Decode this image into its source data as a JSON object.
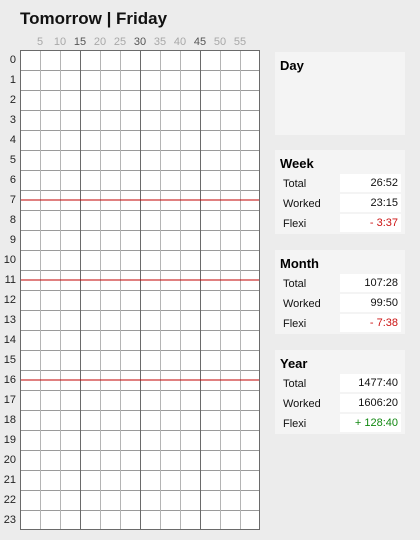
{
  "header": {
    "title": "Tomorrow | Friday"
  },
  "timeline": {
    "minute_labels": [
      "5",
      "10",
      "15",
      "20",
      "25",
      "30",
      "35",
      "40",
      "45",
      "50",
      "55"
    ],
    "hour_labels": [
      "0",
      "1",
      "2",
      "3",
      "4",
      "5",
      "6",
      "7",
      "8",
      "9",
      "10",
      "11",
      "12",
      "13",
      "14",
      "15",
      "16",
      "17",
      "18",
      "19",
      "20",
      "21",
      "22",
      "23"
    ],
    "marker_hours": [
      7.5,
      11.5,
      16.5
    ],
    "marker_color": "#c00000"
  },
  "panels": {
    "day": {
      "title": "Day"
    },
    "week": {
      "title": "Week",
      "rows": [
        {
          "label": "Total",
          "value": "26:52"
        },
        {
          "label": "Worked",
          "value": "23:15"
        },
        {
          "label": "Flexi",
          "value": "- 3:37"
        }
      ]
    },
    "month": {
      "title": "Month",
      "rows": [
        {
          "label": "Total",
          "value": "107:28"
        },
        {
          "label": "Worked",
          "value": "99:50"
        },
        {
          "label": "Flexi",
          "value": "- 7:38"
        }
      ]
    },
    "year": {
      "title": "Year",
      "rows": [
        {
          "label": "Total",
          "value": "1477:40"
        },
        {
          "label": "Worked",
          "value": "1606:20"
        },
        {
          "label": "Flexi",
          "value": "+ 128:40"
        }
      ]
    }
  }
}
